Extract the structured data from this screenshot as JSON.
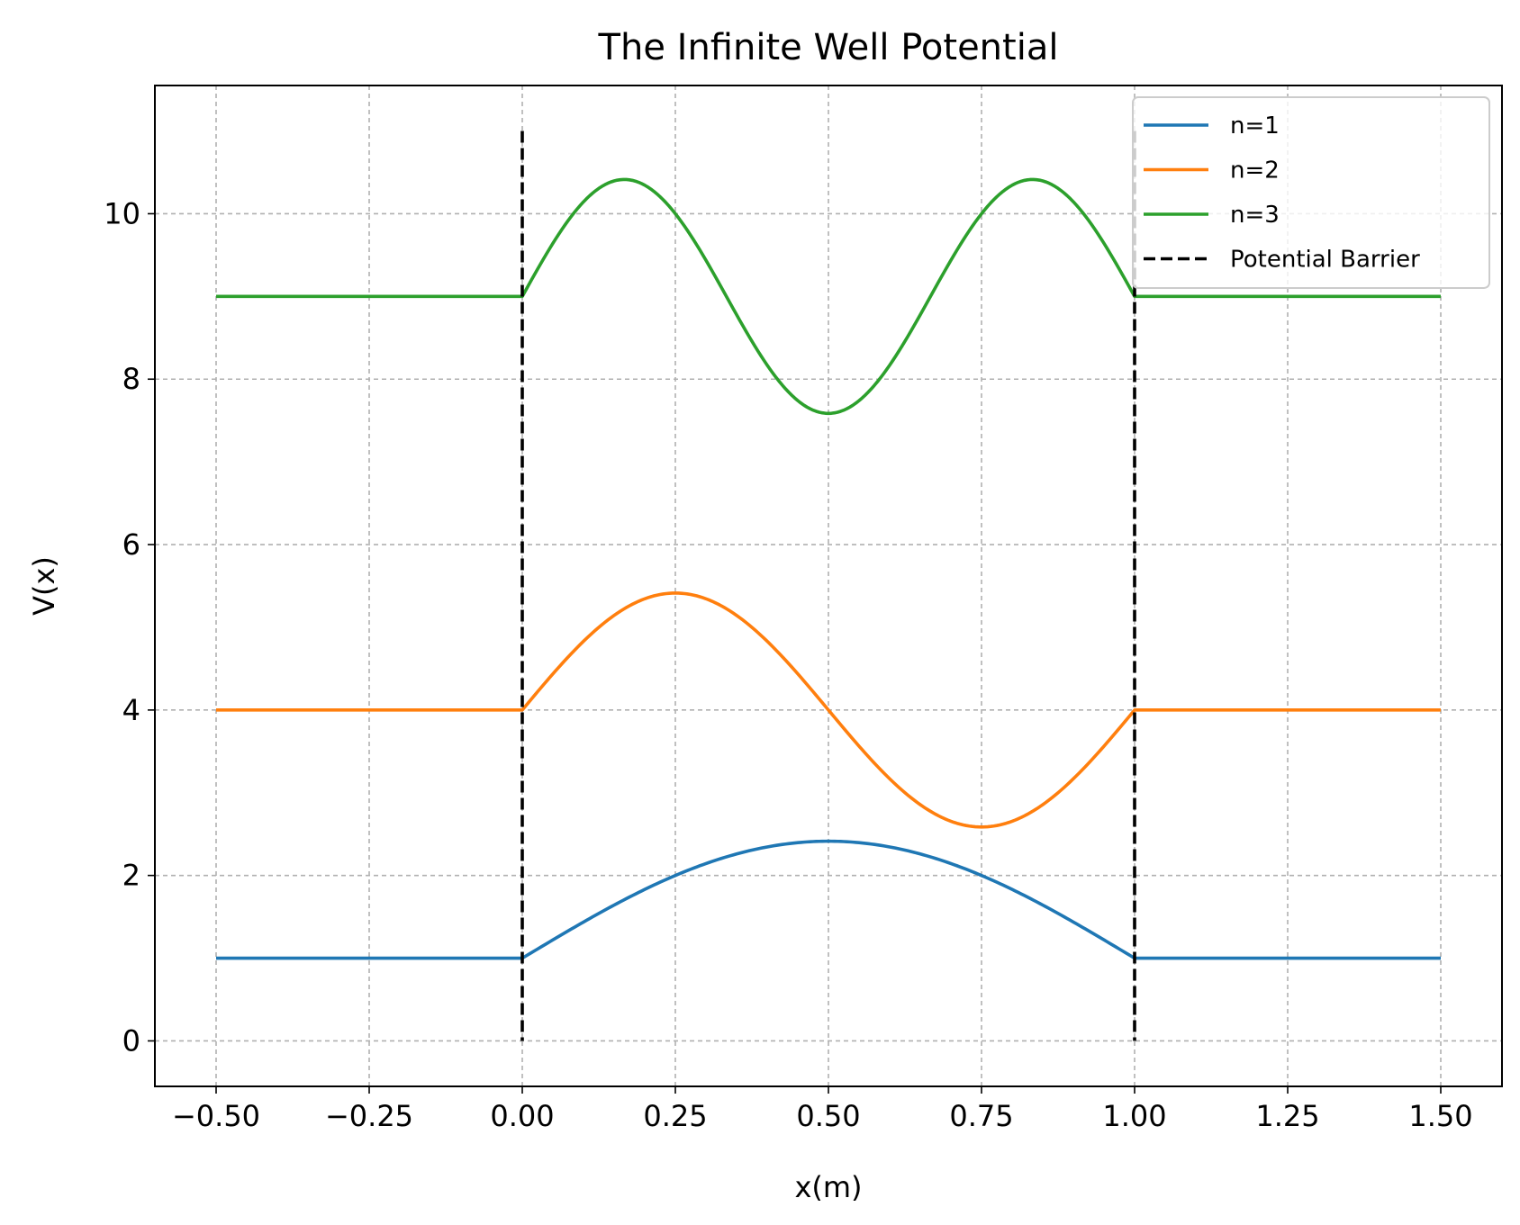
{
  "chart_data": {
    "type": "line",
    "title": "The Infinite Well Potential",
    "xlabel": "x(m)",
    "ylabel": "V(x)",
    "xlim": [
      -0.6,
      1.6
    ],
    "ylim": [
      -0.55,
      11.55
    ],
    "grid": true,
    "legend_position": "top-right",
    "x_ticks": [
      -0.5,
      -0.25,
      0.0,
      0.25,
      0.5,
      0.75,
      1.0,
      1.25,
      1.5
    ],
    "x_tick_labels": [
      "−0.50",
      "−0.25",
      "0.00",
      "0.25",
      "0.50",
      "0.75",
      "1.00",
      "1.25",
      "1.50"
    ],
    "y_ticks": [
      0,
      2,
      4,
      6,
      8,
      10
    ],
    "y_tick_labels": [
      "0",
      "2",
      "4",
      "6",
      "8",
      "10"
    ],
    "x": [
      -0.5,
      -0.25,
      0.0,
      0.0833,
      0.1667,
      0.25,
      0.3333,
      0.4167,
      0.5,
      0.5833,
      0.6667,
      0.75,
      0.8333,
      0.9167,
      1.0,
      1.25,
      1.5
    ],
    "series": [
      {
        "name": "n=1",
        "color": "#1f77b4",
        "values": [
          1.0,
          1.0,
          1.0,
          1.366,
          1.707,
          2.0,
          2.225,
          2.366,
          2.414,
          2.366,
          2.225,
          2.0,
          1.707,
          1.366,
          1.0,
          1.0,
          1.0
        ]
      },
      {
        "name": "n=2",
        "color": "#ff7f0e",
        "values": [
          4.0,
          4.0,
          4.0,
          4.707,
          5.225,
          5.414,
          5.225,
          4.707,
          4.0,
          3.293,
          2.775,
          2.586,
          2.775,
          3.293,
          4.0,
          4.0,
          4.0
        ]
      },
      {
        "name": "n=3",
        "color": "#2ca02c",
        "values": [
          9.0,
          9.0,
          9.0,
          10.0,
          10.414,
          10.0,
          9.0,
          8.0,
          7.586,
          8.0,
          9.0,
          10.0,
          10.414,
          10.0,
          9.0,
          9.0,
          9.0
        ]
      }
    ],
    "barrier": {
      "name": "Potential Barrier",
      "color": "#000000",
      "x_positions": [
        0.0,
        1.0
      ],
      "y_range": [
        0,
        11
      ]
    }
  }
}
